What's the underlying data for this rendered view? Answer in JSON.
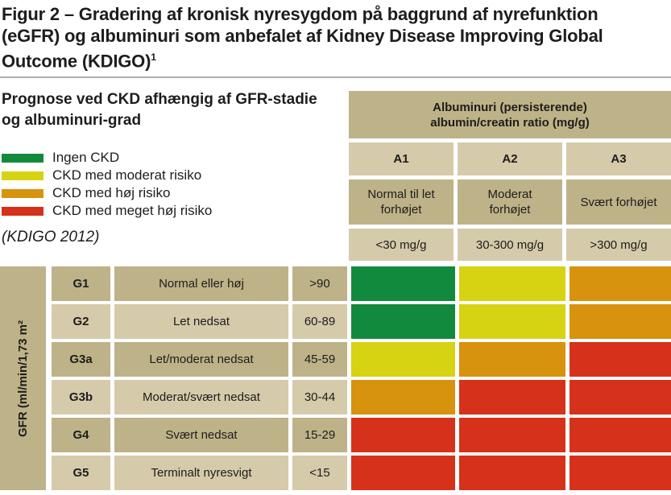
{
  "title": {
    "lines": [
      "Figur 2 – Gradering af kronisk nyresygdom på baggrund af nyrefunktion",
      "(eGFR) og albuminuri som anbefalet af Kidney Disease Improving Global",
      "Outcome (KDIGO)"
    ],
    "superscript": "1"
  },
  "panel": {
    "heading_line1": "Prognose ved CKD afhængig af GFR-stadie",
    "heading_line2": "og albuminuri-grad",
    "source_note": "(KDIGO 2012)"
  },
  "legend": {
    "items": [
      {
        "label": "Ingen CKD",
        "level": "ingen_ckd"
      },
      {
        "label": "CKD med moderat risiko",
        "level": "moderat_risiko"
      },
      {
        "label": "CKD med høj risiko",
        "level": "hoej_risiko"
      },
      {
        "label": "CKD med meget høj risiko",
        "level": "meget_hoej_risiko"
      }
    ]
  },
  "colors": {
    "ingen_ckd": "#128a3e",
    "moderat_risiko": "#d6d313",
    "hoej_risiko": "#d7920e",
    "meget_hoej_risiko": "#d6311a",
    "tan_dark": "#beb288",
    "tan_light": "#d5caaa"
  },
  "albuminuria": {
    "header_line1": "Albuminuri (persisterende)",
    "header_line2": "albumin/creatin ratio (mg/g)",
    "categories": [
      {
        "code": "A1",
        "description": "Normal til let forhøjet",
        "range": "<30 mg/g"
      },
      {
        "code": "A2",
        "description": "Moderat forhøjet",
        "range": "30-300 mg/g"
      },
      {
        "code": "A3",
        "description": "Svært forhøjet",
        "range": ">300 mg/g"
      }
    ]
  },
  "gfr": {
    "axis_label": "GFR (ml/min/1,73 m²",
    "rows": [
      {
        "stage": "G1",
        "description": "Normal eller høj",
        "range": ">90"
      },
      {
        "stage": "G2",
        "description": "Let nedsat",
        "range": "60-89"
      },
      {
        "stage": "G3a",
        "description": "Let/moderat nedsat",
        "range": "45-59"
      },
      {
        "stage": "G3b",
        "description": "Moderat/svært nedsat",
        "range": "30-44"
      },
      {
        "stage": "G4",
        "description": "Svært nedsat",
        "range": "15-29"
      },
      {
        "stage": "G5",
        "description": "Terminalt nyresvigt",
        "range": "<15"
      }
    ]
  },
  "chart_data": {
    "type": "heatmap",
    "title": "Prognose ved CKD afhængig af GFR-stadie og albuminuri-grad (KDIGO 2012)",
    "xlabel": "Albuminuri (persisterende) albumin/creatin ratio (mg/g)",
    "ylabel": "GFR (ml/min/1,73 m²",
    "x_categories": [
      "A1: Normal til let forhøjet (<30 mg/g)",
      "A2: Moderat forhøjet (30-300 mg/g)",
      "A3: Svært forhøjet (>300 mg/g)"
    ],
    "y_categories": [
      "G1: Normal eller høj (>90)",
      "G2: Let nedsat (60-89)",
      "G3a: Let/moderat nedsat (45-59)",
      "G3b: Moderat/svært nedsat (30-44)",
      "G4: Svært nedsat (15-29)",
      "G5: Terminalt nyresvigt (<15)"
    ],
    "legend_labels": [
      "Ingen CKD",
      "CKD med moderat risiko",
      "CKD med høj risiko",
      "CKD med meget høj risiko"
    ],
    "legend_position": "top-left",
    "matrix": [
      [
        "ingen_ckd",
        "moderat_risiko",
        "hoej_risiko"
      ],
      [
        "ingen_ckd",
        "moderat_risiko",
        "hoej_risiko"
      ],
      [
        "moderat_risiko",
        "hoej_risiko",
        "meget_hoej_risiko"
      ],
      [
        "hoej_risiko",
        "meget_hoej_risiko",
        "meget_hoej_risiko"
      ],
      [
        "meget_hoej_risiko",
        "meget_hoej_risiko",
        "meget_hoej_risiko"
      ],
      [
        "meget_hoej_risiko",
        "meget_hoej_risiko",
        "meget_hoej_risiko"
      ]
    ]
  }
}
